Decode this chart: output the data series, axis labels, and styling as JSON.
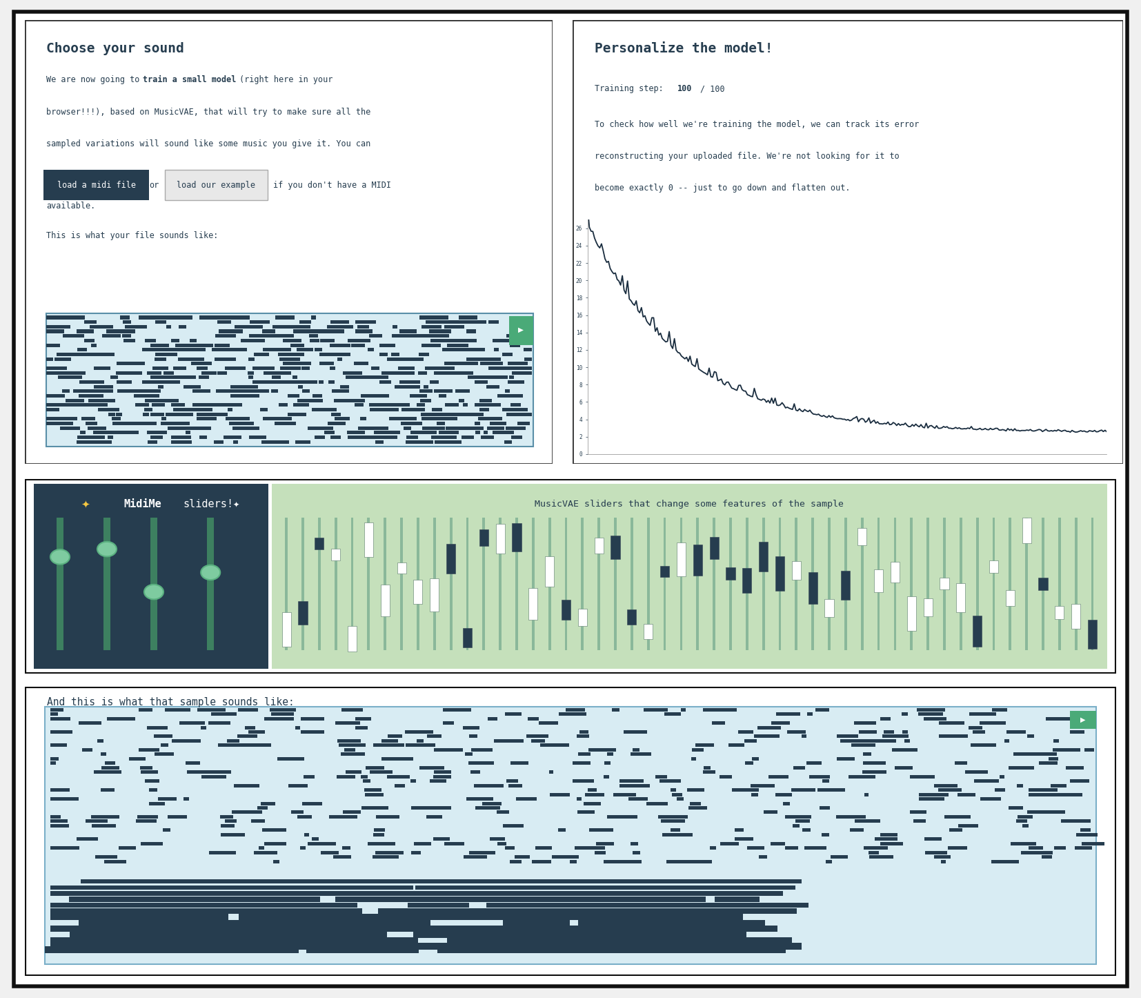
{
  "bg_color": "#f0f0f0",
  "panel_border": "#1a1a1a",
  "midi_panel_bg": "#263d4f",
  "musicvae_panel_bg": "#c5e0bb",
  "bottom_piano_bg": "#d8ecf3",
  "top_piano_bg": "#d8ecf3",
  "text_color": "#263d4f",
  "title1": "Choose your sound",
  "title2": "Personalize the model!",
  "midi_title_star": "✦",
  "midi_title_midime": "MidiMe",
  "midi_title_rest": " sliders!✦",
  "button1_text": "load a midi file",
  "button1_bg": "#263d4f",
  "button2_text": "load our example",
  "button2_bg": "#e8e8e8",
  "play_color": "#4aaa78",
  "slider_track_color": "#4a9070",
  "slider_handle_color": "#7ecba0",
  "chart_line_color": "#1a2d3f",
  "note_dark": "#263d4f",
  "musicvae_title": "MusicVAE sliders that change some features of the sample",
  "bottom_text": "And this is what that sample sounds like:"
}
